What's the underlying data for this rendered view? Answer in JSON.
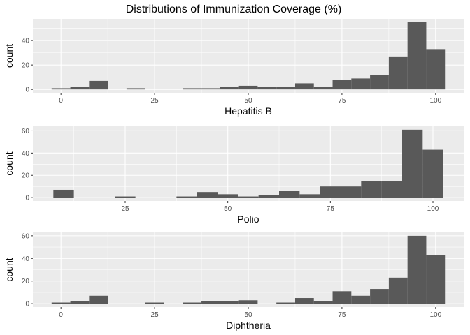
{
  "title": "Distributions of Immunization Coverage (%)",
  "chart_data": [
    {
      "type": "bar",
      "subtype": "histogram",
      "xlabel": "Hepatitis B",
      "ylabel": "count",
      "bin_width": 5,
      "xlim": [
        -7.5,
        107.5
      ],
      "ylim": [
        -2.75,
        57.75
      ],
      "x_ticks": [
        0,
        25,
        50,
        75,
        100
      ],
      "y_ticks": [
        0,
        20,
        40
      ],
      "bins": [
        {
          "x": 0,
          "count": 1
        },
        {
          "x": 5,
          "count": 2
        },
        {
          "x": 10,
          "count": 7
        },
        {
          "x": 20,
          "count": 1
        },
        {
          "x": 35,
          "count": 1
        },
        {
          "x": 40,
          "count": 1
        },
        {
          "x": 45,
          "count": 2
        },
        {
          "x": 50,
          "count": 3
        },
        {
          "x": 55,
          "count": 2
        },
        {
          "x": 60,
          "count": 2
        },
        {
          "x": 65,
          "count": 5
        },
        {
          "x": 70,
          "count": 2
        },
        {
          "x": 75,
          "count": 8
        },
        {
          "x": 80,
          "count": 9
        },
        {
          "x": 85,
          "count": 12
        },
        {
          "x": 90,
          "count": 27
        },
        {
          "x": 95,
          "count": 55
        },
        {
          "x": 100,
          "count": 33
        }
      ],
      "grid": true
    },
    {
      "type": "bar",
      "subtype": "histogram",
      "xlabel": "Polio",
      "ylabel": "count",
      "bin_width": 5,
      "xlim": [
        2.5,
        107.5
      ],
      "ylim": [
        -3.05,
        64.05
      ],
      "x_ticks": [
        25,
        50,
        75,
        100
      ],
      "y_ticks": [
        0,
        20,
        40,
        60
      ],
      "bins": [
        {
          "x": 10,
          "count": 7
        },
        {
          "x": 25,
          "count": 1
        },
        {
          "x": 40,
          "count": 1
        },
        {
          "x": 45,
          "count": 5
        },
        {
          "x": 50,
          "count": 3
        },
        {
          "x": 55,
          "count": 1
        },
        {
          "x": 60,
          "count": 2
        },
        {
          "x": 65,
          "count": 6
        },
        {
          "x": 70,
          "count": 3
        },
        {
          "x": 75,
          "count": 10
        },
        {
          "x": 80,
          "count": 10
        },
        {
          "x": 85,
          "count": 15
        },
        {
          "x": 90,
          "count": 15
        },
        {
          "x": 95,
          "count": 61
        },
        {
          "x": 100,
          "count": 43
        }
      ],
      "grid": true
    },
    {
      "type": "bar",
      "subtype": "histogram",
      "xlabel": "Diphtheria",
      "ylabel": "count",
      "bin_width": 5,
      "xlim": [
        -7.5,
        107.5
      ],
      "ylim": [
        -3.0,
        63.0
      ],
      "x_ticks": [
        0,
        25,
        50,
        75,
        100
      ],
      "y_ticks": [
        0,
        20,
        40,
        60
      ],
      "bins": [
        {
          "x": 0,
          "count": 1
        },
        {
          "x": 5,
          "count": 2
        },
        {
          "x": 10,
          "count": 7
        },
        {
          "x": 25,
          "count": 1
        },
        {
          "x": 35,
          "count": 1
        },
        {
          "x": 40,
          "count": 2
        },
        {
          "x": 45,
          "count": 2
        },
        {
          "x": 50,
          "count": 3
        },
        {
          "x": 60,
          "count": 1
        },
        {
          "x": 65,
          "count": 5
        },
        {
          "x": 70,
          "count": 2
        },
        {
          "x": 75,
          "count": 11
        },
        {
          "x": 80,
          "count": 7
        },
        {
          "x": 85,
          "count": 13
        },
        {
          "x": 90,
          "count": 23
        },
        {
          "x": 95,
          "count": 60
        },
        {
          "x": 100,
          "count": 43
        }
      ],
      "grid": true
    }
  ]
}
